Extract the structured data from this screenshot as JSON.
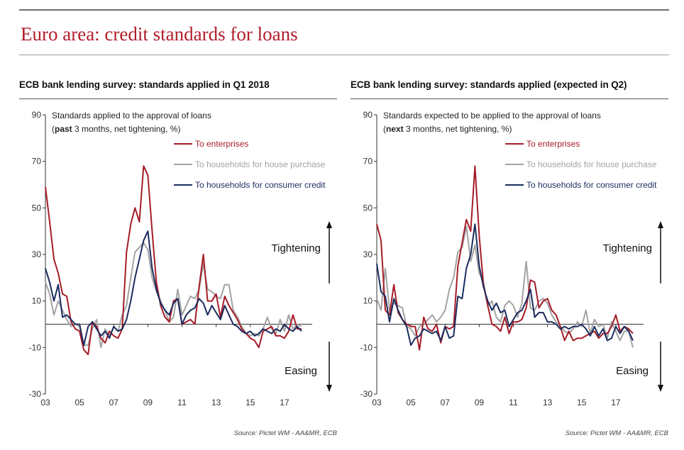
{
  "page": {
    "title": "Euro area: credit standards for loans"
  },
  "colors": {
    "title": "#b21e2b",
    "enterprises": "#a61c28",
    "house": "#a3a3a3",
    "consumer": "#1b2d5e"
  },
  "chart_data": [
    {
      "type": "line",
      "title": "ECB bank lending survey: standards applied in Q1 2018",
      "note_line1": "Standards applied to the approval of loans",
      "note_bold": "past",
      "note_rest": " 3 months, net tightening, %)",
      "note_open": "(",
      "ylim": [
        -30,
        90
      ],
      "y_ticks": [
        "90",
        "70",
        "50",
        "30",
        "10",
        "-10",
        "-30"
      ],
      "y_tick_values": [
        90,
        70,
        50,
        30,
        10,
        -10,
        -30
      ],
      "x_ticks": [
        "03",
        "05",
        "07",
        "09",
        "11",
        "13",
        "15",
        "17"
      ],
      "x_tick_values": [
        2003,
        2005,
        2007,
        2009,
        2011,
        2013,
        2015,
        2017
      ],
      "xlim": [
        2003,
        2018.5
      ],
      "grid": false,
      "legend_position": "top-right",
      "annotation_up": "Tightening",
      "annotation_down": "Easing",
      "source": "Source: Pictet WM - AA&MR, ECB",
      "series": [
        {
          "name": "To enterprises",
          "color_key": "enterprises",
          "x": [
            2003.0,
            2003.25,
            2003.5,
            2003.75,
            2004.0,
            2004.25,
            2004.5,
            2004.75,
            2005.0,
            2005.25,
            2005.5,
            2005.75,
            2006.0,
            2006.25,
            2006.5,
            2006.75,
            2007.0,
            2007.25,
            2007.5,
            2007.75,
            2008.0,
            2008.25,
            2008.5,
            2008.75,
            2009.0,
            2009.25,
            2009.5,
            2009.75,
            2010.0,
            2010.25,
            2010.5,
            2010.75,
            2011.0,
            2011.25,
            2011.5,
            2011.75,
            2012.0,
            2012.25,
            2012.5,
            2012.75,
            2013.0,
            2013.25,
            2013.5,
            2013.75,
            2014.0,
            2014.25,
            2014.5,
            2014.75,
            2015.0,
            2015.25,
            2015.5,
            2015.75,
            2016.0,
            2016.25,
            2016.5,
            2016.75,
            2017.0,
            2017.25,
            2017.5,
            2017.75,
            2018.0
          ],
          "values": [
            59,
            44,
            28,
            22,
            13,
            12,
            1,
            -2,
            -3,
            -11,
            -13,
            1,
            -1,
            -6,
            -8,
            -3,
            -5,
            -6,
            -2,
            31,
            43,
            50,
            44,
            68,
            64,
            40,
            18,
            8,
            3,
            1,
            10,
            11,
            0,
            1,
            2,
            0,
            16,
            30,
            10,
            10,
            13,
            3,
            12,
            8,
            5,
            2,
            -2,
            -4,
            -6,
            -7,
            -10,
            -3,
            -2,
            -1,
            -5,
            -5,
            -6,
            -3,
            4,
            -2,
            -2
          ]
        },
        {
          "name": "To households for house purchase",
          "color_key": "house",
          "x": [
            2003.0,
            2003.25,
            2003.5,
            2003.75,
            2004.0,
            2004.25,
            2004.5,
            2004.75,
            2005.0,
            2005.25,
            2005.5,
            2005.75,
            2006.0,
            2006.25,
            2006.5,
            2006.75,
            2007.0,
            2007.25,
            2007.5,
            2007.75,
            2008.0,
            2008.25,
            2008.5,
            2008.75,
            2009.0,
            2009.25,
            2009.5,
            2009.75,
            2010.0,
            2010.25,
            2010.5,
            2010.75,
            2011.0,
            2011.25,
            2011.5,
            2011.75,
            2012.0,
            2012.25,
            2012.5,
            2012.75,
            2013.0,
            2013.25,
            2013.5,
            2013.75,
            2014.0,
            2014.25,
            2014.5,
            2014.75,
            2015.0,
            2015.25,
            2015.5,
            2015.75,
            2016.0,
            2016.25,
            2016.5,
            2016.75,
            2017.0,
            2017.25,
            2017.5,
            2017.75,
            2018.0
          ],
          "values": [
            18,
            13,
            4,
            10,
            6,
            2,
            -1,
            0,
            -1,
            -9,
            -9,
            -2,
            2,
            -10,
            -2,
            -5,
            -1,
            -3,
            4,
            8,
            20,
            31,
            33,
            35,
            32,
            20,
            14,
            10,
            6,
            1,
            3,
            15,
            4,
            8,
            12,
            11,
            15,
            26,
            15,
            14,
            12,
            11,
            17,
            17,
            6,
            3,
            -1,
            -4,
            -5,
            -4,
            -5,
            -2,
            3,
            -2,
            -4,
            2,
            -3,
            4,
            -2,
            0,
            -1
          ]
        },
        {
          "name": "To households for consumer credit",
          "color_key": "consumer",
          "x": [
            2003.0,
            2003.25,
            2003.5,
            2003.75,
            2004.0,
            2004.25,
            2004.5,
            2004.75,
            2005.0,
            2005.25,
            2005.5,
            2005.75,
            2006.0,
            2006.25,
            2006.5,
            2006.75,
            2007.0,
            2007.25,
            2007.5,
            2007.75,
            2008.0,
            2008.25,
            2008.5,
            2008.75,
            2009.0,
            2009.25,
            2009.5,
            2009.75,
            2010.0,
            2010.25,
            2010.5,
            2010.75,
            2011.0,
            2011.25,
            2011.5,
            2011.75,
            2012.0,
            2012.25,
            2012.5,
            2012.75,
            2013.0,
            2013.25,
            2013.5,
            2013.75,
            2014.0,
            2014.25,
            2014.5,
            2014.75,
            2015.0,
            2015.25,
            2015.5,
            2015.75,
            2016.0,
            2016.25,
            2016.5,
            2016.75,
            2017.0,
            2017.25,
            2017.5,
            2017.75,
            2018.0
          ],
          "values": [
            24,
            18,
            10,
            17,
            3,
            4,
            2,
            0,
            0,
            -9,
            -1,
            1,
            -2,
            -5,
            -3,
            -6,
            -1,
            -3,
            -2,
            2,
            10,
            20,
            28,
            36,
            40,
            24,
            15,
            9,
            6,
            4,
            9,
            11,
            0,
            4,
            6,
            7,
            11,
            9,
            4,
            8,
            5,
            2,
            8,
            4,
            0,
            -1,
            -3,
            -4,
            -3,
            -5,
            -4,
            -2,
            -3,
            -4,
            -2,
            -3,
            0,
            -2,
            -3,
            -1,
            -3
          ]
        }
      ]
    },
    {
      "type": "line",
      "title": "ECB bank lending survey: standards applied (expected in Q2)",
      "note_line1": "Standards expected to be applied to the approval of loans",
      "note_bold": "next",
      "note_rest": " 3 months, net tightening, %)",
      "note_open": "(",
      "ylim": [
        -30,
        90
      ],
      "y_ticks": [
        "90",
        "70",
        "50",
        "30",
        "10",
        "-10",
        "-30"
      ],
      "y_tick_values": [
        90,
        70,
        50,
        30,
        10,
        -10,
        -30
      ],
      "x_ticks": [
        "03",
        "05",
        "07",
        "09",
        "11",
        "13",
        "15",
        "17"
      ],
      "x_tick_values": [
        2003,
        2005,
        2007,
        2009,
        2011,
        2013,
        2015,
        2017
      ],
      "xlim": [
        2003,
        2018.5
      ],
      "grid": false,
      "legend_position": "top-right",
      "annotation_up": "Tightening",
      "annotation_down": "Easing",
      "source": "Source: Pictet WM - AA&MR, ECB",
      "series": [
        {
          "name": "To enterprises",
          "color_key": "enterprises",
          "x": [
            2003.0,
            2003.25,
            2003.5,
            2003.75,
            2004.0,
            2004.25,
            2004.5,
            2004.75,
            2005.0,
            2005.25,
            2005.5,
            2005.75,
            2006.0,
            2006.25,
            2006.5,
            2006.75,
            2007.0,
            2007.25,
            2007.5,
            2007.75,
            2008.0,
            2008.25,
            2008.5,
            2008.75,
            2009.0,
            2009.25,
            2009.5,
            2009.75,
            2010.0,
            2010.25,
            2010.5,
            2010.75,
            2011.0,
            2011.25,
            2011.5,
            2011.75,
            2012.0,
            2012.25,
            2012.5,
            2012.75,
            2013.0,
            2013.25,
            2013.5,
            2013.75,
            2014.0,
            2014.25,
            2014.5,
            2014.75,
            2015.0,
            2015.25,
            2015.5,
            2015.75,
            2016.0,
            2016.25,
            2016.5,
            2016.75,
            2017.0,
            2017.25,
            2017.5,
            2017.75,
            2018.0
          ],
          "values": [
            43,
            36,
            6,
            4,
            17,
            5,
            2,
            0,
            -1,
            -1,
            -11,
            3,
            -2,
            -3,
            0,
            -8,
            -1,
            -2,
            -1,
            25,
            35,
            45,
            40,
            68,
            38,
            17,
            8,
            0,
            -1,
            -3,
            3,
            -4,
            1,
            1,
            2,
            7,
            19,
            18,
            7,
            10,
            11,
            6,
            4,
            -1,
            -7,
            -3,
            -7,
            -6,
            -6,
            -5,
            -4,
            -3,
            -6,
            -4,
            -4,
            -1,
            4,
            -3,
            -1,
            -2,
            -4
          ]
        },
        {
          "name": "To households for house purchase",
          "color_key": "house",
          "x": [
            2003.0,
            2003.25,
            2003.5,
            2003.75,
            2004.0,
            2004.25,
            2004.5,
            2004.75,
            2005.0,
            2005.25,
            2005.5,
            2005.75,
            2006.0,
            2006.25,
            2006.5,
            2006.75,
            2007.0,
            2007.25,
            2007.5,
            2007.75,
            2008.0,
            2008.25,
            2008.5,
            2008.75,
            2009.0,
            2009.25,
            2009.5,
            2009.75,
            2010.0,
            2010.25,
            2010.5,
            2010.75,
            2011.0,
            2011.25,
            2011.5,
            2011.75,
            2012.0,
            2012.25,
            2012.5,
            2012.75,
            2013.0,
            2013.25,
            2013.5,
            2013.75,
            2014.0,
            2014.25,
            2014.5,
            2014.75,
            2015.0,
            2015.25,
            2015.5,
            2015.75,
            2016.0,
            2016.25,
            2016.5,
            2016.75,
            2017.0,
            2017.25,
            2017.5,
            2017.75,
            2018.0
          ],
          "values": [
            11,
            6,
            24,
            6,
            9,
            8,
            7,
            -1,
            -2,
            -5,
            -1,
            0,
            2,
            4,
            1,
            3,
            6,
            15,
            20,
            31,
            33,
            42,
            27,
            34,
            22,
            18,
            8,
            10,
            3,
            1,
            8,
            10,
            8,
            3,
            9,
            27,
            7,
            6,
            10,
            11,
            9,
            4,
            1,
            -1,
            -3,
            -4,
            -2,
            1,
            -1,
            6,
            -4,
            2,
            -1,
            0,
            -6,
            1,
            -3,
            -7,
            -3,
            -3,
            -10
          ]
        },
        {
          "name": "To households for consumer credit",
          "color_key": "consumer",
          "x": [
            2003.0,
            2003.25,
            2003.5,
            2003.75,
            2004.0,
            2004.25,
            2004.5,
            2004.75,
            2005.0,
            2005.25,
            2005.5,
            2005.75,
            2006.0,
            2006.25,
            2006.5,
            2006.75,
            2007.0,
            2007.25,
            2007.5,
            2007.75,
            2008.0,
            2008.25,
            2008.5,
            2008.75,
            2009.0,
            2009.25,
            2009.5,
            2009.75,
            2010.0,
            2010.25,
            2010.5,
            2010.75,
            2011.0,
            2011.25,
            2011.5,
            2011.75,
            2012.0,
            2012.25,
            2012.5,
            2012.75,
            2013.0,
            2013.25,
            2013.5,
            2013.75,
            2014.0,
            2014.25,
            2014.5,
            2014.75,
            2015.0,
            2015.25,
            2015.5,
            2015.75,
            2016.0,
            2016.25,
            2016.5,
            2016.75,
            2017.0,
            2017.25,
            2017.5,
            2017.75,
            2018.0
          ],
          "values": [
            26,
            14,
            12,
            1,
            11,
            6,
            2,
            -1,
            -9,
            -6,
            -5,
            -2,
            -3,
            -4,
            -3,
            -7,
            -1,
            -6,
            -5,
            12,
            11,
            24,
            30,
            43,
            25,
            16,
            10,
            6,
            9,
            5,
            6,
            -1,
            2,
            5,
            6,
            10,
            15,
            3,
            5,
            5,
            1,
            1,
            0,
            -2,
            -1,
            -2,
            -1,
            -1,
            0,
            -2,
            -5,
            -1,
            -5,
            -2,
            -7,
            -6,
            -1,
            -4,
            -1,
            -3,
            -7
          ]
        }
      ]
    }
  ]
}
